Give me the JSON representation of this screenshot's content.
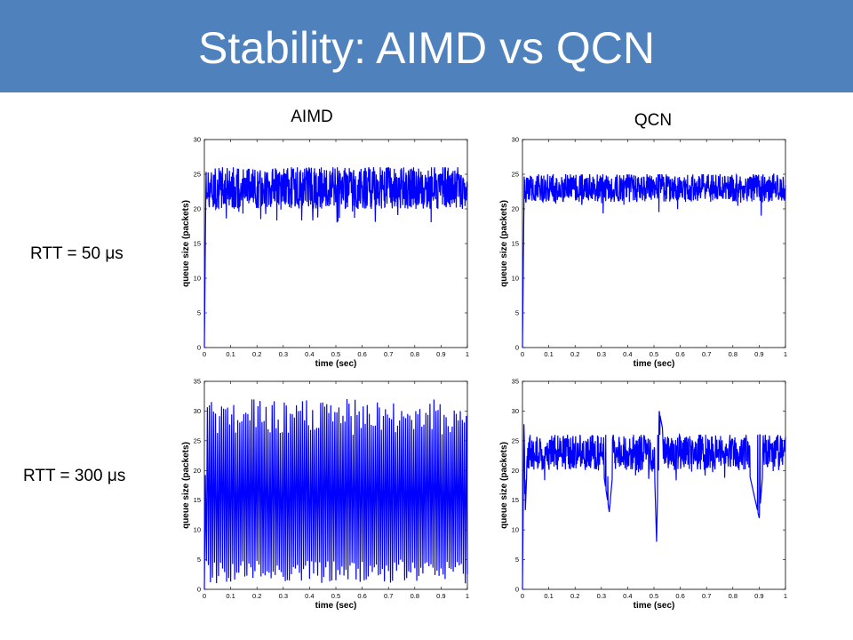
{
  "title": "Stability: AIMD vs QCN",
  "colors": {
    "title_bar": "#4f81bd",
    "series": "#0000ff"
  },
  "column_labels": [
    "AIMD",
    "QCN"
  ],
  "row_labels": [
    "RTT = 50 μs",
    "RTT = 300 μs"
  ],
  "chart_data": [
    {
      "type": "line",
      "column": "AIMD",
      "row": "RTT = 50 μs",
      "xlabel": "time (sec)",
      "ylabel": "queue size (packets)",
      "xlim": [
        0,
        1
      ],
      "ylim": [
        0,
        30
      ],
      "xticks": [
        "0",
        "0.1",
        "0.2",
        "0.3",
        "0.4",
        "0.5",
        "0.6",
        "0.7",
        "0.8",
        "0.9",
        "1"
      ],
      "yticks": [
        "0",
        "5",
        "10",
        "15",
        "20",
        "25",
        "30"
      ],
      "grid": false,
      "color": "#0000ff",
      "series": [
        {
          "x": [
            0,
            0.005,
            0.01,
            0.03,
            0.06,
            0.1,
            0.14,
            0.18,
            0.22,
            0.26,
            0.3,
            0.34,
            0.38,
            0.42,
            0.46,
            0.5,
            0.54,
            0.58,
            0.62,
            0.66,
            0.7,
            0.74,
            0.78,
            0.82,
            0.86,
            0.9,
            0.94,
            0.98,
            1.0
          ],
          "y": [
            0,
            24,
            23,
            23.5,
            23,
            22.5,
            23.5,
            24,
            23,
            22,
            23.5,
            24,
            23,
            21,
            23.5,
            23,
            22.5,
            24,
            23,
            23.5,
            22.5,
            24,
            23,
            23.5,
            22.5,
            23,
            23.5,
            23,
            22
          ],
          "baseline": 23,
          "spread_low": 3,
          "spread_high": 3
        }
      ]
    },
    {
      "type": "line",
      "column": "QCN",
      "row": "RTT = 50 μs",
      "xlabel": "time (sec)",
      "ylabel": "queue size (packets)",
      "xlim": [
        0,
        1
      ],
      "ylim": [
        0,
        30
      ],
      "xticks": [
        "0",
        "0.1",
        "0.2",
        "0.3",
        "0.4",
        "0.5",
        "0.6",
        "0.7",
        "0.8",
        "0.9",
        "1"
      ],
      "yticks": [
        "0",
        "5",
        "10",
        "15",
        "20",
        "25",
        "30"
      ],
      "grid": false,
      "color": "#0000ff",
      "series": [
        {
          "x": [
            0,
            0.005,
            0.01,
            0.03,
            0.06,
            0.1,
            0.14,
            0.18,
            0.22,
            0.26,
            0.3,
            0.34,
            0.38,
            0.42,
            0.46,
            0.5,
            0.54,
            0.58,
            0.62,
            0.66,
            0.7,
            0.74,
            0.78,
            0.82,
            0.86,
            0.9,
            0.94,
            0.98,
            1.0
          ],
          "y": [
            0,
            22,
            23,
            23.5,
            23,
            23,
            23.5,
            23,
            23,
            22.5,
            23.5,
            23,
            23,
            22.5,
            23.5,
            23,
            22.5,
            23.5,
            23,
            23.5,
            23,
            23.5,
            23,
            23.5,
            22.5,
            23,
            23.5,
            23,
            23
          ],
          "baseline": 23,
          "spread_low": 2,
          "spread_high": 2
        }
      ]
    },
    {
      "type": "line",
      "column": "AIMD",
      "row": "RTT = 300 μs",
      "xlabel": "time (sec)",
      "ylabel": "queue size (packets)",
      "xlim": [
        0,
        1
      ],
      "ylim": [
        0,
        35
      ],
      "xticks": [
        "0",
        "0.1",
        "0.2",
        "0.3",
        "0.4",
        "0.5",
        "0.6",
        "0.7",
        "0.8",
        "0.9",
        "1"
      ],
      "yticks": [
        "0",
        "5",
        "10",
        "15",
        "20",
        "25",
        "30",
        "35"
      ],
      "grid": false,
      "color": "#0000ff",
      "series": [
        {
          "x": [
            0,
            0.01,
            0.05,
            0.1,
            0.2,
            0.3,
            0.4,
            0.5,
            0.6,
            0.7,
            0.8,
            0.9,
            1.0
          ],
          "y": [
            0,
            30,
            2,
            30,
            1,
            31,
            2,
            30,
            1,
            30,
            2,
            31,
            1
          ],
          "baseline": 15,
          "spread_low": 15,
          "spread_high": 16
        }
      ]
    },
    {
      "type": "line",
      "column": "QCN",
      "row": "RTT = 300 μs",
      "xlabel": "time (sec)",
      "ylabel": "queue size (packets)",
      "xlim": [
        0,
        1
      ],
      "ylim": [
        0,
        35
      ],
      "xticks": [
        "0",
        "0.1",
        "0.2",
        "0.3",
        "0.4",
        "0.5",
        "0.6",
        "0.7",
        "0.8",
        "0.9",
        "1"
      ],
      "yticks": [
        "0",
        "5",
        "10",
        "15",
        "20",
        "25",
        "30",
        "35"
      ],
      "grid": false,
      "color": "#0000ff",
      "series": [
        {
          "x": [
            0,
            0.005,
            0.01,
            0.02,
            0.05,
            0.1,
            0.15,
            0.2,
            0.25,
            0.3,
            0.33,
            0.35,
            0.4,
            0.45,
            0.5,
            0.51,
            0.52,
            0.55,
            0.6,
            0.65,
            0.7,
            0.75,
            0.8,
            0.85,
            0.9,
            0.92,
            0.95,
            1.0
          ],
          "y": [
            0,
            30,
            12,
            24,
            23,
            23,
            22,
            23,
            23,
            22,
            13,
            23,
            22,
            23,
            23,
            8,
            30,
            23,
            22,
            23,
            23,
            22,
            23,
            22,
            12,
            23,
            23,
            22
          ],
          "baseline": 23,
          "spread_low": 3,
          "spread_high": 3
        }
      ]
    }
  ]
}
